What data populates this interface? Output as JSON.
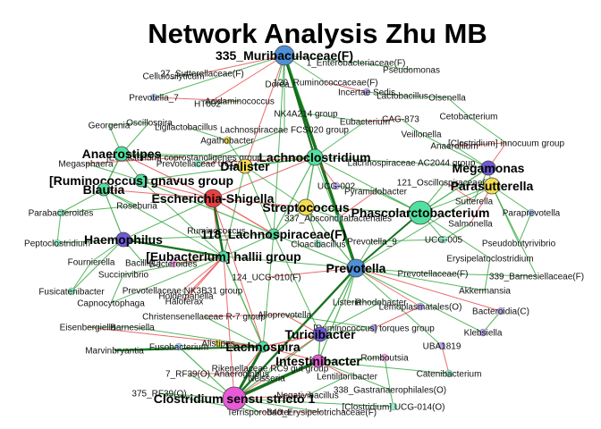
{
  "title": "Network Analysis Zhu MB",
  "nodes": [
    {
      "id": "n1",
      "label": "335_Muribaculaceae(F)",
      "big": true,
      "color": "#4f8fd6"
    },
    {
      "id": "n2",
      "label": "Anaerostipes",
      "big": true,
      "color": "#52e0a0"
    },
    {
      "id": "n3",
      "label": "[Ruminococcus] gnavus group",
      "big": true,
      "color": "#52e0a0"
    },
    {
      "id": "n4",
      "label": "Blautia",
      "big": true,
      "color": "#52e0a0"
    },
    {
      "id": "n5",
      "label": "Escherichia-Shigella",
      "big": true,
      "color": "#e84040"
    },
    {
      "id": "n6",
      "label": "Lachnoclostridium",
      "big": true,
      "color": "#52e0a0"
    },
    {
      "id": "n7",
      "label": "Dialister",
      "big": true,
      "color": "#f3dd4e"
    },
    {
      "id": "n8",
      "label": "Streptococcus",
      "big": true,
      "color": "#f3dd4e"
    },
    {
      "id": "n9",
      "label": "Phascolarctobacterium",
      "big": true,
      "color": "#52e0a0"
    },
    {
      "id": "n10",
      "label": "Megamonas",
      "big": true,
      "color": "#6e5ad8"
    },
    {
      "id": "n11",
      "label": "Parasutterella",
      "big": true,
      "color": "#f3dd4e"
    },
    {
      "id": "n12",
      "label": "118_Lachnospiraceae(F)",
      "big": true,
      "color": "#52e0a0"
    },
    {
      "id": "n13",
      "label": "Haemophilus",
      "big": true,
      "color": "#6e5ad8"
    },
    {
      "id": "n14",
      "label": "[Eubacterium] hallii group",
      "big": true,
      "color": "#52e0a0"
    },
    {
      "id": "n15",
      "label": "Prevotella",
      "big": true,
      "color": "#4f8fd6"
    },
    {
      "id": "n16",
      "label": "Turicibacter",
      "big": true,
      "color": "#6e5ad8"
    },
    {
      "id": "n17",
      "label": "Lachnospira",
      "big": true,
      "color": "#52e0a0"
    },
    {
      "id": "n18",
      "label": "Intestinibacter",
      "big": true,
      "color": "#e85ad8"
    },
    {
      "id": "n19",
      "label": "Clostridium sensu stricto 1",
      "big": true,
      "color": "#e85ad8"
    },
    {
      "id": "s1",
      "label": "Cellulosilyticum",
      "big": false
    },
    {
      "id": "s2",
      "label": "27_Sutterellaceae(F)",
      "big": false
    },
    {
      "id": "s3",
      "label": "1_Enterobacteriaceae(F)",
      "big": false
    },
    {
      "id": "s4",
      "label": "Pseudomonas",
      "big": false
    },
    {
      "id": "s5",
      "label": "Prevotella_7",
      "big": false
    },
    {
      "id": "s6",
      "label": "Acidaminococcus",
      "big": false
    },
    {
      "id": "s7",
      "label": "Dorea",
      "big": false
    },
    {
      "id": "s8",
      "label": "120_Ruminococcaceae(F)",
      "big": false
    },
    {
      "id": "s9",
      "label": "Incertae Sedis",
      "big": false
    },
    {
      "id": "s10",
      "label": "Lactobacillus",
      "big": false
    },
    {
      "id": "s11",
      "label": "Olsenella",
      "big": false
    },
    {
      "id": "s12",
      "label": "HT002",
      "big": false
    },
    {
      "id": "s13",
      "label": "NK4A214 group",
      "big": false
    },
    {
      "id": "s14",
      "label": "Cetobacterium",
      "big": false
    },
    {
      "id": "s15",
      "label": "Georgenia",
      "big": false
    },
    {
      "id": "s16",
      "label": "Oscillospira",
      "big": false
    },
    {
      "id": "s17",
      "label": "Eubacterium",
      "big": false
    },
    {
      "id": "s18",
      "label": "CAG-873",
      "big": false
    },
    {
      "id": "s19",
      "label": "Ligilactobacillus",
      "big": false
    },
    {
      "id": "s20",
      "label": "Lachnospiraceae FCS020 group",
      "big": false
    },
    {
      "id": "s21",
      "label": "Veillonella",
      "big": false
    },
    {
      "id": "s22",
      "label": "Anaerofilum",
      "big": false
    },
    {
      "id": "s23",
      "label": "Agathobacter",
      "big": false
    },
    {
      "id": "s24",
      "label": "[Clostridium] innocuum group",
      "big": false
    },
    {
      "id": "s25",
      "label": "Megasphaera",
      "big": false
    },
    {
      "id": "s26",
      "label": "Prevotellaceae UCG-",
      "big": false
    },
    {
      "id": "s27",
      "label": "[Eubacterium] coprostanoligenes group",
      "big": false
    },
    {
      "id": "s28",
      "label": "Lachnospiraceae AC2044 group",
      "big": false
    },
    {
      "id": "s29",
      "label": "121_Oscillospiraceae(F)",
      "big": false
    },
    {
      "id": "s30",
      "label": "UCG-002",
      "big": false
    },
    {
      "id": "s31",
      "label": "Pyramidobacter",
      "big": false
    },
    {
      "id": "s32",
      "label": "Roseburia",
      "big": false
    },
    {
      "id": "s33",
      "label": "Parabacteroides",
      "big": false
    },
    {
      "id": "s34",
      "label": "Sutterella",
      "big": false
    },
    {
      "id": "s35",
      "label": "Paraprevotella",
      "big": false
    },
    {
      "id": "s36",
      "label": "337_Absconditabacteriales",
      "big": false
    },
    {
      "id": "s37",
      "label": "Salmonella",
      "big": false
    },
    {
      "id": "s38",
      "label": "Peptoclostridium",
      "big": false
    },
    {
      "id": "s39",
      "label": "Cloacibacillus",
      "big": false
    },
    {
      "id": "s40",
      "label": "Prevotella_9",
      "big": false
    },
    {
      "id": "s41",
      "label": "UCG-005",
      "big": false
    },
    {
      "id": "s42",
      "label": "Pseudobutyrivibrio",
      "big": false
    },
    {
      "id": "s43",
      "label": "Fournierella",
      "big": false
    },
    {
      "id": "s44",
      "label": "Bacteroides",
      "big": false
    },
    {
      "id": "s45",
      "label": "Erysipelatoclostridium",
      "big": false
    },
    {
      "id": "s46",
      "label": "Succinivibrio",
      "big": false
    },
    {
      "id": "s47",
      "label": "124_UCG-010(F)",
      "big": false
    },
    {
      "id": "s48",
      "label": "Prevotellaceae(F)",
      "big": false
    },
    {
      "id": "s49",
      "label": "339_Barnesiellaceae(F)",
      "big": false
    },
    {
      "id": "s50",
      "label": "Fusicatenibacter",
      "big": false
    },
    {
      "id": "s51",
      "label": "Akkermansia",
      "big": false
    },
    {
      "id": "s52",
      "label": "Prevotellaceae NK3B31 group",
      "big": false
    },
    {
      "id": "s53",
      "label": "Capnocytophaga",
      "big": false
    },
    {
      "id": "s54",
      "label": "Holdemanella",
      "big": false
    },
    {
      "id": "s55",
      "label": "Haloferax",
      "big": false
    },
    {
      "id": "s56",
      "label": "Listeria",
      "big": false
    },
    {
      "id": "s57",
      "label": "Rhodobacter",
      "big": false
    },
    {
      "id": "s58",
      "label": "Bacteroidia(C)",
      "big": false
    },
    {
      "id": "s59",
      "label": "Christensenellaceae R-7 group",
      "big": false
    },
    {
      "id": "s60",
      "label": "Eisenbergiella",
      "big": false
    },
    {
      "id": "s61",
      "label": "Barnesiella",
      "big": false
    },
    {
      "id": "s62",
      "label": "Alloprevotella",
      "big": false
    },
    {
      "id": "s63",
      "label": "Lemoplasmatales(O)",
      "big": false
    },
    {
      "id": "s64",
      "label": "[Ruminococcus] torques group",
      "big": false
    },
    {
      "id": "s65",
      "label": "Klebsiella",
      "big": false
    },
    {
      "id": "s66",
      "label": "Marvinbryantia",
      "big": false
    },
    {
      "id": "s67",
      "label": "Fusobacterium",
      "big": false
    },
    {
      "id": "s68",
      "label": "Alistipes",
      "big": false
    },
    {
      "id": "s69",
      "label": "UBA1819",
      "big": false
    },
    {
      "id": "s70",
      "label": "Romboutsia",
      "big": false
    },
    {
      "id": "s71",
      "label": "7_RF39(O)",
      "big": false
    },
    {
      "id": "s72",
      "label": "Anaeroglobus",
      "big": false
    },
    {
      "id": "s73",
      "label": "Rikenellaceae RC9 gut group",
      "big": false
    },
    {
      "id": "s74",
      "label": "Neisseria",
      "big": false
    },
    {
      "id": "s75",
      "label": "Lentilitoribacter",
      "big": false
    },
    {
      "id": "s76",
      "label": "Catenibacterium",
      "big": false
    },
    {
      "id": "s77",
      "label": "338_Gastranaerophilales(O)",
      "big": false
    },
    {
      "id": "s78",
      "label": "375_RF39(O)",
      "big": false
    },
    {
      "id": "s79",
      "label": "Negativibacillus",
      "big": false
    },
    {
      "id": "s80",
      "label": "Terrisporobacter",
      "big": false
    },
    {
      "id": "s81",
      "label": "340_Erysipelotrichaceae(F)",
      "big": false
    },
    {
      "id": "s82",
      "label": "[Clostridium] UCG-014(O)",
      "big": false
    },
    {
      "id": "s83",
      "label": "Ruminococcus",
      "big": false
    },
    {
      "id": "s84",
      "label": "Bacilli(C)",
      "big": false
    }
  ],
  "legend_note": ""
}
